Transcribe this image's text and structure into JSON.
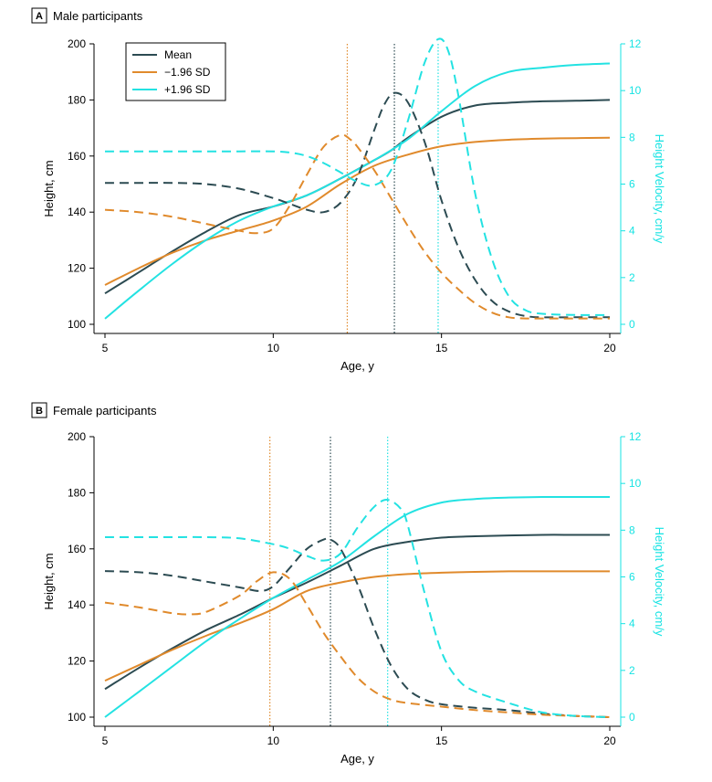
{
  "colors": {
    "mean": "#2c4b52",
    "minus": "#e08a2c",
    "plus": "#23e2e2",
    "axis": "#000000"
  },
  "legend": [
    {
      "key": "mean",
      "label": "Mean"
    },
    {
      "key": "minus",
      "label": "−1.96 SD"
    },
    {
      "key": "plus",
      "label": "+1.96 SD"
    }
  ],
  "chart_data": [
    {
      "type": "line",
      "panel_label": "A",
      "title": "Male participants",
      "xlabel": "Age, y",
      "ylabel": "Height, cm",
      "y2label": "Height Velocity, cm/y",
      "xlim": [
        5,
        20
      ],
      "ylim": [
        100,
        200
      ],
      "y2lim": [
        0,
        12
      ],
      "xticks": [
        5,
        10,
        15,
        20
      ],
      "yticks": [
        100,
        120,
        140,
        160,
        180,
        200
      ],
      "y2ticks": [
        0,
        2,
        4,
        6,
        8,
        10,
        12
      ],
      "peak_velocity_age": {
        "mean": 13.6,
        "minus": 12.2,
        "plus": 14.9
      },
      "series": [
        {
          "name": "Mean",
          "key": "mean",
          "measure": "height",
          "axis": "left",
          "x": [
            5,
            6,
            7,
            8,
            9,
            10,
            11,
            12,
            13,
            13.5,
            14,
            15,
            16,
            17,
            18,
            19,
            20
          ],
          "y": [
            111,
            118.5,
            126,
            133,
            139,
            142,
            146,
            152,
            158.5,
            162,
            166.5,
            174,
            178,
            179,
            179.5,
            179.7,
            180
          ]
        },
        {
          "name": "−1.96 SD",
          "key": "minus",
          "measure": "height",
          "axis": "left",
          "x": [
            5,
            6,
            7,
            8,
            9,
            10,
            11,
            12,
            13,
            14,
            15,
            16,
            17,
            18,
            19,
            20
          ],
          "y": [
            114,
            120,
            125.5,
            130,
            133.5,
            137,
            142,
            150,
            156.5,
            160.5,
            163.5,
            165,
            165.8,
            166.2,
            166.4,
            166.5
          ]
        },
        {
          "name": "+1.96 SD",
          "key": "plus",
          "measure": "height",
          "axis": "left",
          "x": [
            5,
            6,
            7,
            8,
            9,
            10,
            11,
            12,
            13,
            14,
            15,
            16,
            17,
            18,
            19,
            20
          ],
          "y": [
            102,
            112,
            121.5,
            130,
            137,
            142,
            146,
            152,
            158.5,
            166,
            176,
            185,
            190,
            191.5,
            192.5,
            193
          ]
        },
        {
          "name": "Mean",
          "key": "mean",
          "measure": "velocity",
          "axis": "right",
          "x": [
            5,
            6,
            7,
            8,
            9,
            10,
            10.5,
            11,
            11.5,
            12,
            12.5,
            13,
            13.3,
            13.6,
            14,
            14.5,
            15,
            15.5,
            16,
            16.5,
            17,
            17.5,
            18,
            19,
            20
          ],
          "y": [
            6.05,
            6.05,
            6.05,
            6.0,
            5.8,
            5.4,
            5.15,
            4.9,
            4.8,
            5.2,
            6.3,
            8.3,
            9.4,
            9.9,
            9.5,
            7.8,
            5.3,
            3.3,
            1.9,
            1.0,
            0.55,
            0.35,
            0.3,
            0.3,
            0.3
          ]
        },
        {
          "name": "−1.96 SD",
          "key": "minus",
          "measure": "velocity",
          "axis": "right",
          "x": [
            5,
            6,
            7,
            8,
            9,
            9.5,
            10,
            10.5,
            11,
            11.5,
            12,
            12.3,
            12.5,
            13,
            13.5,
            14,
            14.5,
            15,
            15.5,
            16,
            16.5,
            17,
            17.5,
            18,
            19,
            20
          ],
          "y": [
            4.9,
            4.8,
            4.6,
            4.3,
            4.0,
            3.9,
            4.1,
            5.1,
            6.4,
            7.6,
            8.1,
            7.9,
            7.6,
            6.6,
            5.4,
            4.2,
            3.1,
            2.2,
            1.5,
            0.9,
            0.5,
            0.3,
            0.25,
            0.25,
            0.25,
            0.25
          ]
        },
        {
          "name": "+1.96 SD",
          "key": "plus",
          "measure": "velocity",
          "axis": "right",
          "x": [
            5,
            6,
            7,
            8,
            9,
            10,
            10.5,
            11,
            11.5,
            12,
            12.5,
            13,
            13.5,
            14,
            14.5,
            14.9,
            15.2,
            15.5,
            16,
            16.5,
            17,
            17.5,
            18,
            19,
            20
          ],
          "y": [
            7.4,
            7.4,
            7.4,
            7.4,
            7.4,
            7.4,
            7.35,
            7.2,
            6.9,
            6.5,
            6.1,
            5.95,
            6.6,
            8.7,
            11.2,
            12.2,
            11.7,
            9.8,
            5.6,
            2.8,
            1.2,
            0.6,
            0.45,
            0.4,
            0.4
          ]
        }
      ]
    },
    {
      "type": "line",
      "panel_label": "B",
      "title": "Female participants",
      "xlabel": "Age, y",
      "ylabel": "Height, cm",
      "y2label": "Height Velocity, cm/y",
      "xlim": [
        5,
        20
      ],
      "ylim": [
        100,
        200
      ],
      "y2lim": [
        0,
        12
      ],
      "xticks": [
        5,
        10,
        15,
        20
      ],
      "yticks": [
        100,
        120,
        140,
        160,
        180,
        200
      ],
      "y2ticks": [
        0,
        2,
        4,
        6,
        8,
        10,
        12
      ],
      "peak_velocity_age": {
        "mean": 11.7,
        "minus": 9.9,
        "plus": 13.4
      },
      "series": [
        {
          "name": "Mean",
          "key": "mean",
          "measure": "height",
          "axis": "left",
          "x": [
            5,
            6,
            7,
            8,
            9,
            10,
            11,
            12,
            13,
            14,
            15,
            16,
            17,
            18,
            19,
            20
          ],
          "y": [
            110,
            117.5,
            124.5,
            131,
            136.5,
            142.5,
            148,
            154,
            160,
            162.5,
            164,
            164.5,
            164.8,
            165,
            165,
            165
          ]
        },
        {
          "name": "−1.96 SD",
          "key": "minus",
          "measure": "height",
          "axis": "left",
          "x": [
            5,
            6,
            7,
            8,
            9,
            10,
            11,
            12,
            13,
            14,
            15,
            16,
            17,
            18,
            19,
            20
          ],
          "y": [
            113,
            118.5,
            124,
            129,
            133.5,
            138.5,
            145,
            148,
            150,
            151,
            151.5,
            151.8,
            152,
            152,
            152,
            152
          ]
        },
        {
          "name": "+1.96 SD",
          "key": "plus",
          "measure": "height",
          "axis": "left",
          "x": [
            5,
            6,
            7,
            8,
            9,
            10,
            11,
            12,
            13,
            14,
            15,
            16,
            17,
            18,
            19,
            20
          ],
          "y": [
            100,
            109,
            118,
            127,
            135,
            142.5,
            149,
            155.5,
            164.5,
            172.5,
            176.5,
            177.8,
            178.3,
            178.5,
            178.5,
            178.5
          ]
        },
        {
          "name": "Mean",
          "key": "mean",
          "measure": "velocity",
          "axis": "right",
          "x": [
            5,
            6,
            7,
            8,
            9,
            9.6,
            10,
            10.5,
            11,
            11.5,
            11.7,
            12,
            12.5,
            13,
            13.5,
            14,
            14.5,
            15,
            16,
            17,
            18,
            19,
            20
          ],
          "y": [
            6.25,
            6.2,
            6.05,
            5.8,
            5.55,
            5.4,
            5.6,
            6.4,
            7.2,
            7.6,
            7.6,
            7.2,
            5.7,
            3.8,
            2.2,
            1.2,
            0.75,
            0.55,
            0.4,
            0.3,
            0.15,
            0.05,
            0
          ]
        },
        {
          "name": "−1.96 SD",
          "key": "minus",
          "measure": "velocity",
          "axis": "right",
          "x": [
            5,
            6,
            7,
            7.5,
            8,
            9,
            9.5,
            10,
            10.5,
            11,
            11.5,
            12,
            12.5,
            13,
            13.5,
            14,
            15,
            16,
            17,
            18,
            19,
            20
          ],
          "y": [
            4.9,
            4.7,
            4.45,
            4.4,
            4.5,
            5.2,
            5.8,
            6.2,
            5.9,
            4.8,
            3.6,
            2.6,
            1.7,
            1.1,
            0.75,
            0.6,
            0.45,
            0.3,
            0.2,
            0.1,
            0.05,
            0
          ]
        },
        {
          "name": "+1.96 SD",
          "key": "plus",
          "measure": "velocity",
          "axis": "right",
          "x": [
            5,
            6,
            7,
            8,
            9,
            10,
            10.5,
            11,
            11.5,
            12,
            12.5,
            13,
            13.4,
            13.8,
            14,
            14.5,
            15,
            15.5,
            16,
            17,
            18,
            19,
            20
          ],
          "y": [
            7.7,
            7.7,
            7.7,
            7.7,
            7.65,
            7.4,
            7.2,
            6.9,
            6.7,
            7.0,
            8.1,
            9.0,
            9.3,
            8.9,
            8.2,
            5.3,
            2.8,
            1.6,
            1.1,
            0.6,
            0.2,
            0.05,
            0
          ]
        }
      ]
    }
  ]
}
